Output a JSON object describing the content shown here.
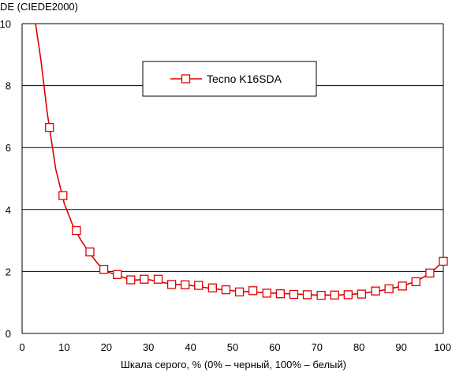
{
  "chart_data": {
    "type": "line",
    "title": "",
    "xlabel": "Шкала серого, % (0% – черный, 100% – белый)",
    "ylabel": "DE (CIEDE2000)",
    "xlim": [
      0,
      100
    ],
    "ylim": [
      0,
      10
    ],
    "x_ticks": [
      0,
      10,
      20,
      30,
      40,
      50,
      60,
      70,
      80,
      90,
      100
    ],
    "y_ticks": [
      0,
      2,
      4,
      6,
      8,
      10
    ],
    "grid": {
      "horizontal": true,
      "vertical": false
    },
    "legend_position": "top-center",
    "colors": {
      "series": "#e00000",
      "marker_fill": "#ffffff",
      "grid": "#000000",
      "axis": "#000000"
    },
    "series": [
      {
        "name": "Tecno K16SDA",
        "marker": "open-square",
        "line": [
          [
            3.2,
            10.0
          ],
          [
            4.5,
            8.8
          ],
          [
            6,
            7.1
          ],
          [
            8,
            5.3
          ],
          [
            10,
            4.2
          ],
          [
            12,
            3.5
          ],
          [
            14,
            3.0
          ],
          [
            16,
            2.6
          ],
          [
            18,
            2.25
          ],
          [
            20,
            2.0
          ],
          [
            22.6,
            1.88
          ],
          [
            26,
            1.72
          ],
          [
            30,
            1.74
          ],
          [
            35,
            1.6
          ],
          [
            40,
            1.55
          ],
          [
            45,
            1.45
          ],
          [
            50,
            1.38
          ],
          [
            55,
            1.33
          ],
          [
            60,
            1.3
          ],
          [
            65,
            1.27
          ],
          [
            70,
            1.24
          ],
          [
            75,
            1.24
          ],
          [
            80,
            1.28
          ],
          [
            85,
            1.38
          ],
          [
            90,
            1.52
          ],
          [
            93.5,
            1.68
          ],
          [
            97,
            1.95
          ],
          [
            100,
            2.33
          ]
        ],
        "points": [
          [
            6.5,
            6.65
          ],
          [
            9.7,
            4.45
          ],
          [
            12.9,
            3.32
          ],
          [
            16.1,
            2.63
          ],
          [
            19.4,
            2.07
          ],
          [
            22.6,
            1.9
          ],
          [
            25.8,
            1.73
          ],
          [
            29.0,
            1.75
          ],
          [
            32.3,
            1.75
          ],
          [
            35.5,
            1.58
          ],
          [
            38.7,
            1.57
          ],
          [
            41.9,
            1.55
          ],
          [
            45.2,
            1.47
          ],
          [
            48.4,
            1.41
          ],
          [
            51.6,
            1.34
          ],
          [
            54.8,
            1.38
          ],
          [
            58.1,
            1.3
          ],
          [
            61.3,
            1.28
          ],
          [
            64.5,
            1.26
          ],
          [
            67.7,
            1.25
          ],
          [
            71.0,
            1.23
          ],
          [
            74.2,
            1.24
          ],
          [
            77.4,
            1.25
          ],
          [
            80.6,
            1.27
          ],
          [
            83.9,
            1.37
          ],
          [
            87.1,
            1.44
          ],
          [
            90.3,
            1.53
          ],
          [
            93.5,
            1.67
          ],
          [
            96.8,
            1.95
          ],
          [
            100.0,
            2.33
          ]
        ]
      }
    ]
  }
}
